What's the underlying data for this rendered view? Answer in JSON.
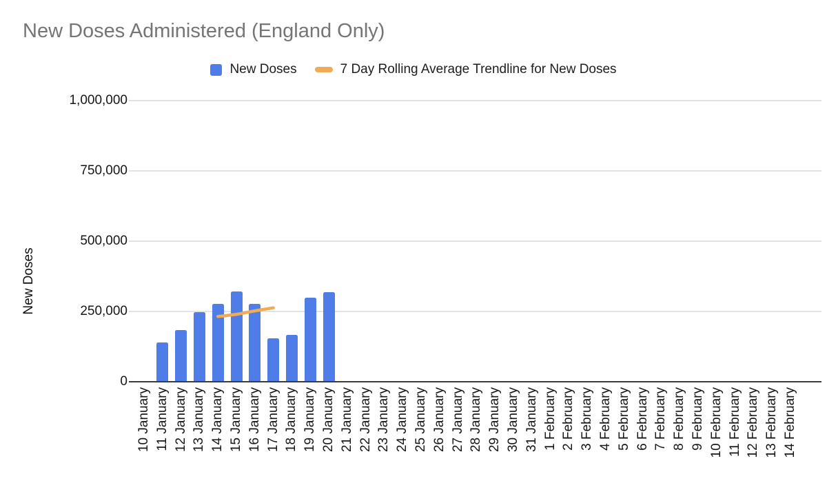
{
  "title": "New Doses Administered (England Only)",
  "colors": {
    "bar": "#4f7de8",
    "trendline": "#efac55",
    "title_text": "#757575",
    "axis_text": "#161616",
    "gridline": "#e3e3e3",
    "baseline": "#3b3b3b"
  },
  "legend": {
    "items": [
      {
        "label": "New Doses",
        "marker": "square",
        "color": "#4f7de8"
      },
      {
        "label": "7 Day Rolling Average Trendline for New Doses",
        "marker": "dash",
        "color": "#efac55"
      }
    ]
  },
  "chart_data": {
    "type": "bar",
    "title": "New Doses Administered (England Only)",
    "xlabel": "",
    "ylabel": "New Doses",
    "ylim": [
      0,
      1000000
    ],
    "ytick_interval": 250000,
    "ytick_labels": [
      "0",
      "250,000",
      "500,000",
      "750,000",
      "1,000,000"
    ],
    "grid": true,
    "legend_position": "top",
    "categories": [
      "10 January",
      "11 January",
      "12 January",
      "13 January",
      "14 January",
      "15 January",
      "16 January",
      "17 January",
      "18 January",
      "19 January",
      "20 January",
      "21 January",
      "22 January",
      "23 January",
      "24 January",
      "25 January",
      "26 January",
      "27 January",
      "28 January",
      "29 January",
      "30 January",
      "31 January",
      "1 February",
      "2 February",
      "3 February",
      "4 February",
      "5 February",
      "6 February",
      "7 February",
      "8 February",
      "9 February",
      "10 February",
      "11 February",
      "12 February",
      "13 February",
      "14 February"
    ],
    "series": [
      {
        "name": "New Doses",
        "type": "bar",
        "color": "#4f7de8",
        "values": [
          null,
          140000,
          185000,
          247000,
          276000,
          322000,
          278000,
          155000,
          167000,
          298000,
          318000,
          null,
          null,
          null,
          null,
          null,
          null,
          null,
          null,
          null,
          null,
          null,
          null,
          null,
          null,
          null,
          null,
          null,
          null,
          null,
          null,
          null,
          null,
          null,
          null,
          null
        ]
      },
      {
        "name": "7 Day Rolling Average Trendline for New Doses",
        "type": "line",
        "color": "#efac55",
        "points": [
          {
            "category": "14 January",
            "value": 232000
          },
          {
            "category": "15 January",
            "value": 240000
          },
          {
            "category": "16 January",
            "value": 252000
          },
          {
            "category": "17 January",
            "value": 263000
          }
        ]
      }
    ]
  }
}
